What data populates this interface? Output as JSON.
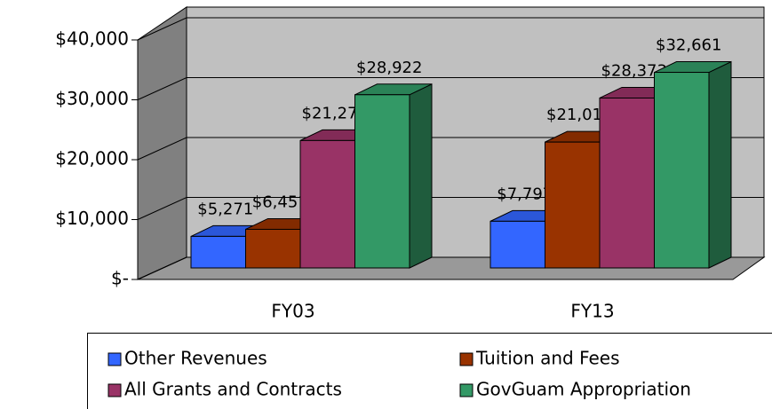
{
  "chart_data": {
    "type": "bar3d",
    "categories": [
      "FY03",
      "FY13"
    ],
    "series": [
      {
        "name": "Other Revenues",
        "color": "#3366ff",
        "values": [
          5271,
          7797
        ],
        "value_labels": [
          "$5,271",
          "$7,797"
        ]
      },
      {
        "name": "Tuition and Fees",
        "color": "#993300",
        "values": [
          6451,
          21017
        ],
        "value_labels": [
          "$6,451",
          "$21,017"
        ]
      },
      {
        "name": "All Grants and Contracts",
        "color": "#993366",
        "values": [
          21276,
          28373
        ],
        "value_labels": [
          "$21,276",
          "$28,373"
        ]
      },
      {
        "name": "GovGuam Appropriation",
        "color": "#339966",
        "values": [
          28922,
          32661
        ],
        "value_labels": [
          "$28,922",
          "$32,661"
        ]
      }
    ],
    "ylim": [
      0,
      40000
    ],
    "yticks": [
      {
        "value": 0,
        "label": "$-"
      },
      {
        "value": 10000,
        "label": "$10,000"
      },
      {
        "value": 20000,
        "label": "$20,000"
      },
      {
        "value": 30000,
        "label": "$30,000"
      },
      {
        "value": 40000,
        "label": "$40,000"
      }
    ],
    "legend": "bottom"
  }
}
